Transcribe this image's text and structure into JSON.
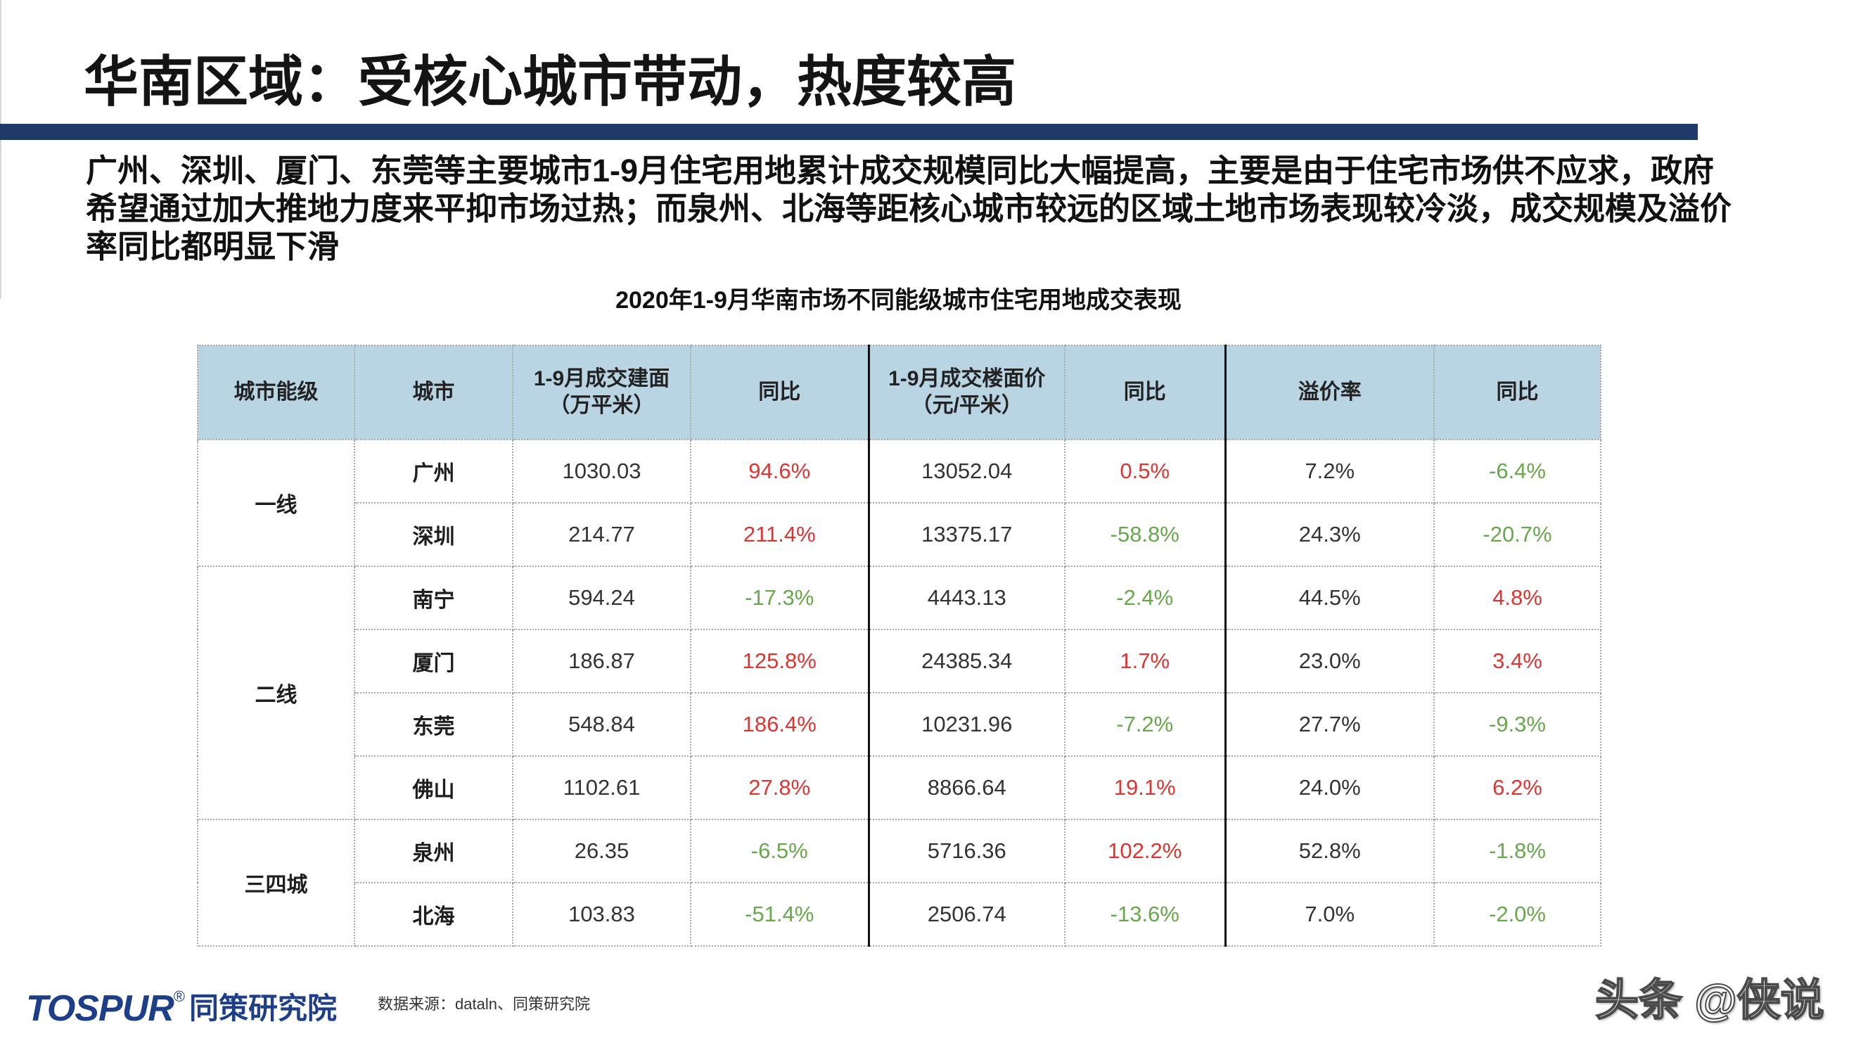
{
  "slide": {
    "title": "华南区域：受核心城市带动，热度较高",
    "summary_lines": [
      "广州、深圳、厦门、东莞等主要城市1-9月住宅用地累计成交规模同比大幅提高，主要是由于住宅市场供不应求，政府",
      "希望通过加大推地力度来平抑市场过热；而泉州、北海等距核心城市较远的区域土地市场表现较冷淡，成交规模及溢价",
      "率同比都明显下滑"
    ]
  },
  "table": {
    "title": "2020年1-9月华南市场不同能级城市住宅用地成交表现",
    "headers": [
      {
        "label": "城市能级"
      },
      {
        "label": "城市"
      },
      {
        "line1": "1-9月成交建面",
        "line2": "（万平米）"
      },
      {
        "label": "同比"
      },
      {
        "line1": "1-9月成交楼面价",
        "line2": "（元/平米）"
      },
      {
        "label": "同比"
      },
      {
        "label": "溢价率"
      },
      {
        "label": "同比"
      }
    ],
    "tiers": [
      {
        "name": "一线",
        "rows": [
          {
            "city": "广州",
            "area": "1030.03",
            "area_yoy": "94.6%",
            "price": "13052.04",
            "price_yoy": "0.5%",
            "premium": "7.2%",
            "premium_yoy": "-6.4%"
          },
          {
            "city": "深圳",
            "area": "214.77",
            "area_yoy": "211.4%",
            "price": "13375.17",
            "price_yoy": "-58.8%",
            "premium": "24.3%",
            "premium_yoy": "-20.7%"
          }
        ]
      },
      {
        "name": "二线",
        "rows": [
          {
            "city": "南宁",
            "area": "594.24",
            "area_yoy": "-17.3%",
            "price": "4443.13",
            "price_yoy": "-2.4%",
            "premium": "44.5%",
            "premium_yoy": "4.8%"
          },
          {
            "city": "厦门",
            "area": "186.87",
            "area_yoy": "125.8%",
            "price": "24385.34",
            "price_yoy": "1.7%",
            "premium": "23.0%",
            "premium_yoy": "3.4%"
          },
          {
            "city": "东莞",
            "area": "548.84",
            "area_yoy": "186.4%",
            "price": "10231.96",
            "price_yoy": "-7.2%",
            "premium": "27.7%",
            "premium_yoy": "-9.3%"
          },
          {
            "city": "佛山",
            "area": "1102.61",
            "area_yoy": "27.8%",
            "price": "8866.64",
            "price_yoy": "19.1%",
            "premium": "24.0%",
            "premium_yoy": "6.2%"
          }
        ]
      },
      {
        "name": "三四城",
        "rows": [
          {
            "city": "泉州",
            "area": "26.35",
            "area_yoy": "-6.5%",
            "price": "5716.36",
            "price_yoy": "102.2%",
            "premium": "52.8%",
            "premium_yoy": "-1.8%"
          },
          {
            "city": "北海",
            "area": "103.83",
            "area_yoy": "-51.4%",
            "price": "2506.74",
            "price_yoy": "-13.6%",
            "premium": "7.0%",
            "premium_yoy": "-2.0%"
          }
        ]
      }
    ]
  },
  "footer": {
    "logo": {
      "brand": "TOSPUR",
      "registered": "®",
      "name_cn": "同策研究院"
    },
    "source": "数据来源：dataln、同策研究院",
    "watermark": "头条 @侠说"
  },
  "colors": {
    "title_bar": "#1f3a68",
    "header_bg": "#b9d4e2",
    "increase": "#e03431",
    "decrease": "#66a84a",
    "logo": "#1d3f8a"
  }
}
